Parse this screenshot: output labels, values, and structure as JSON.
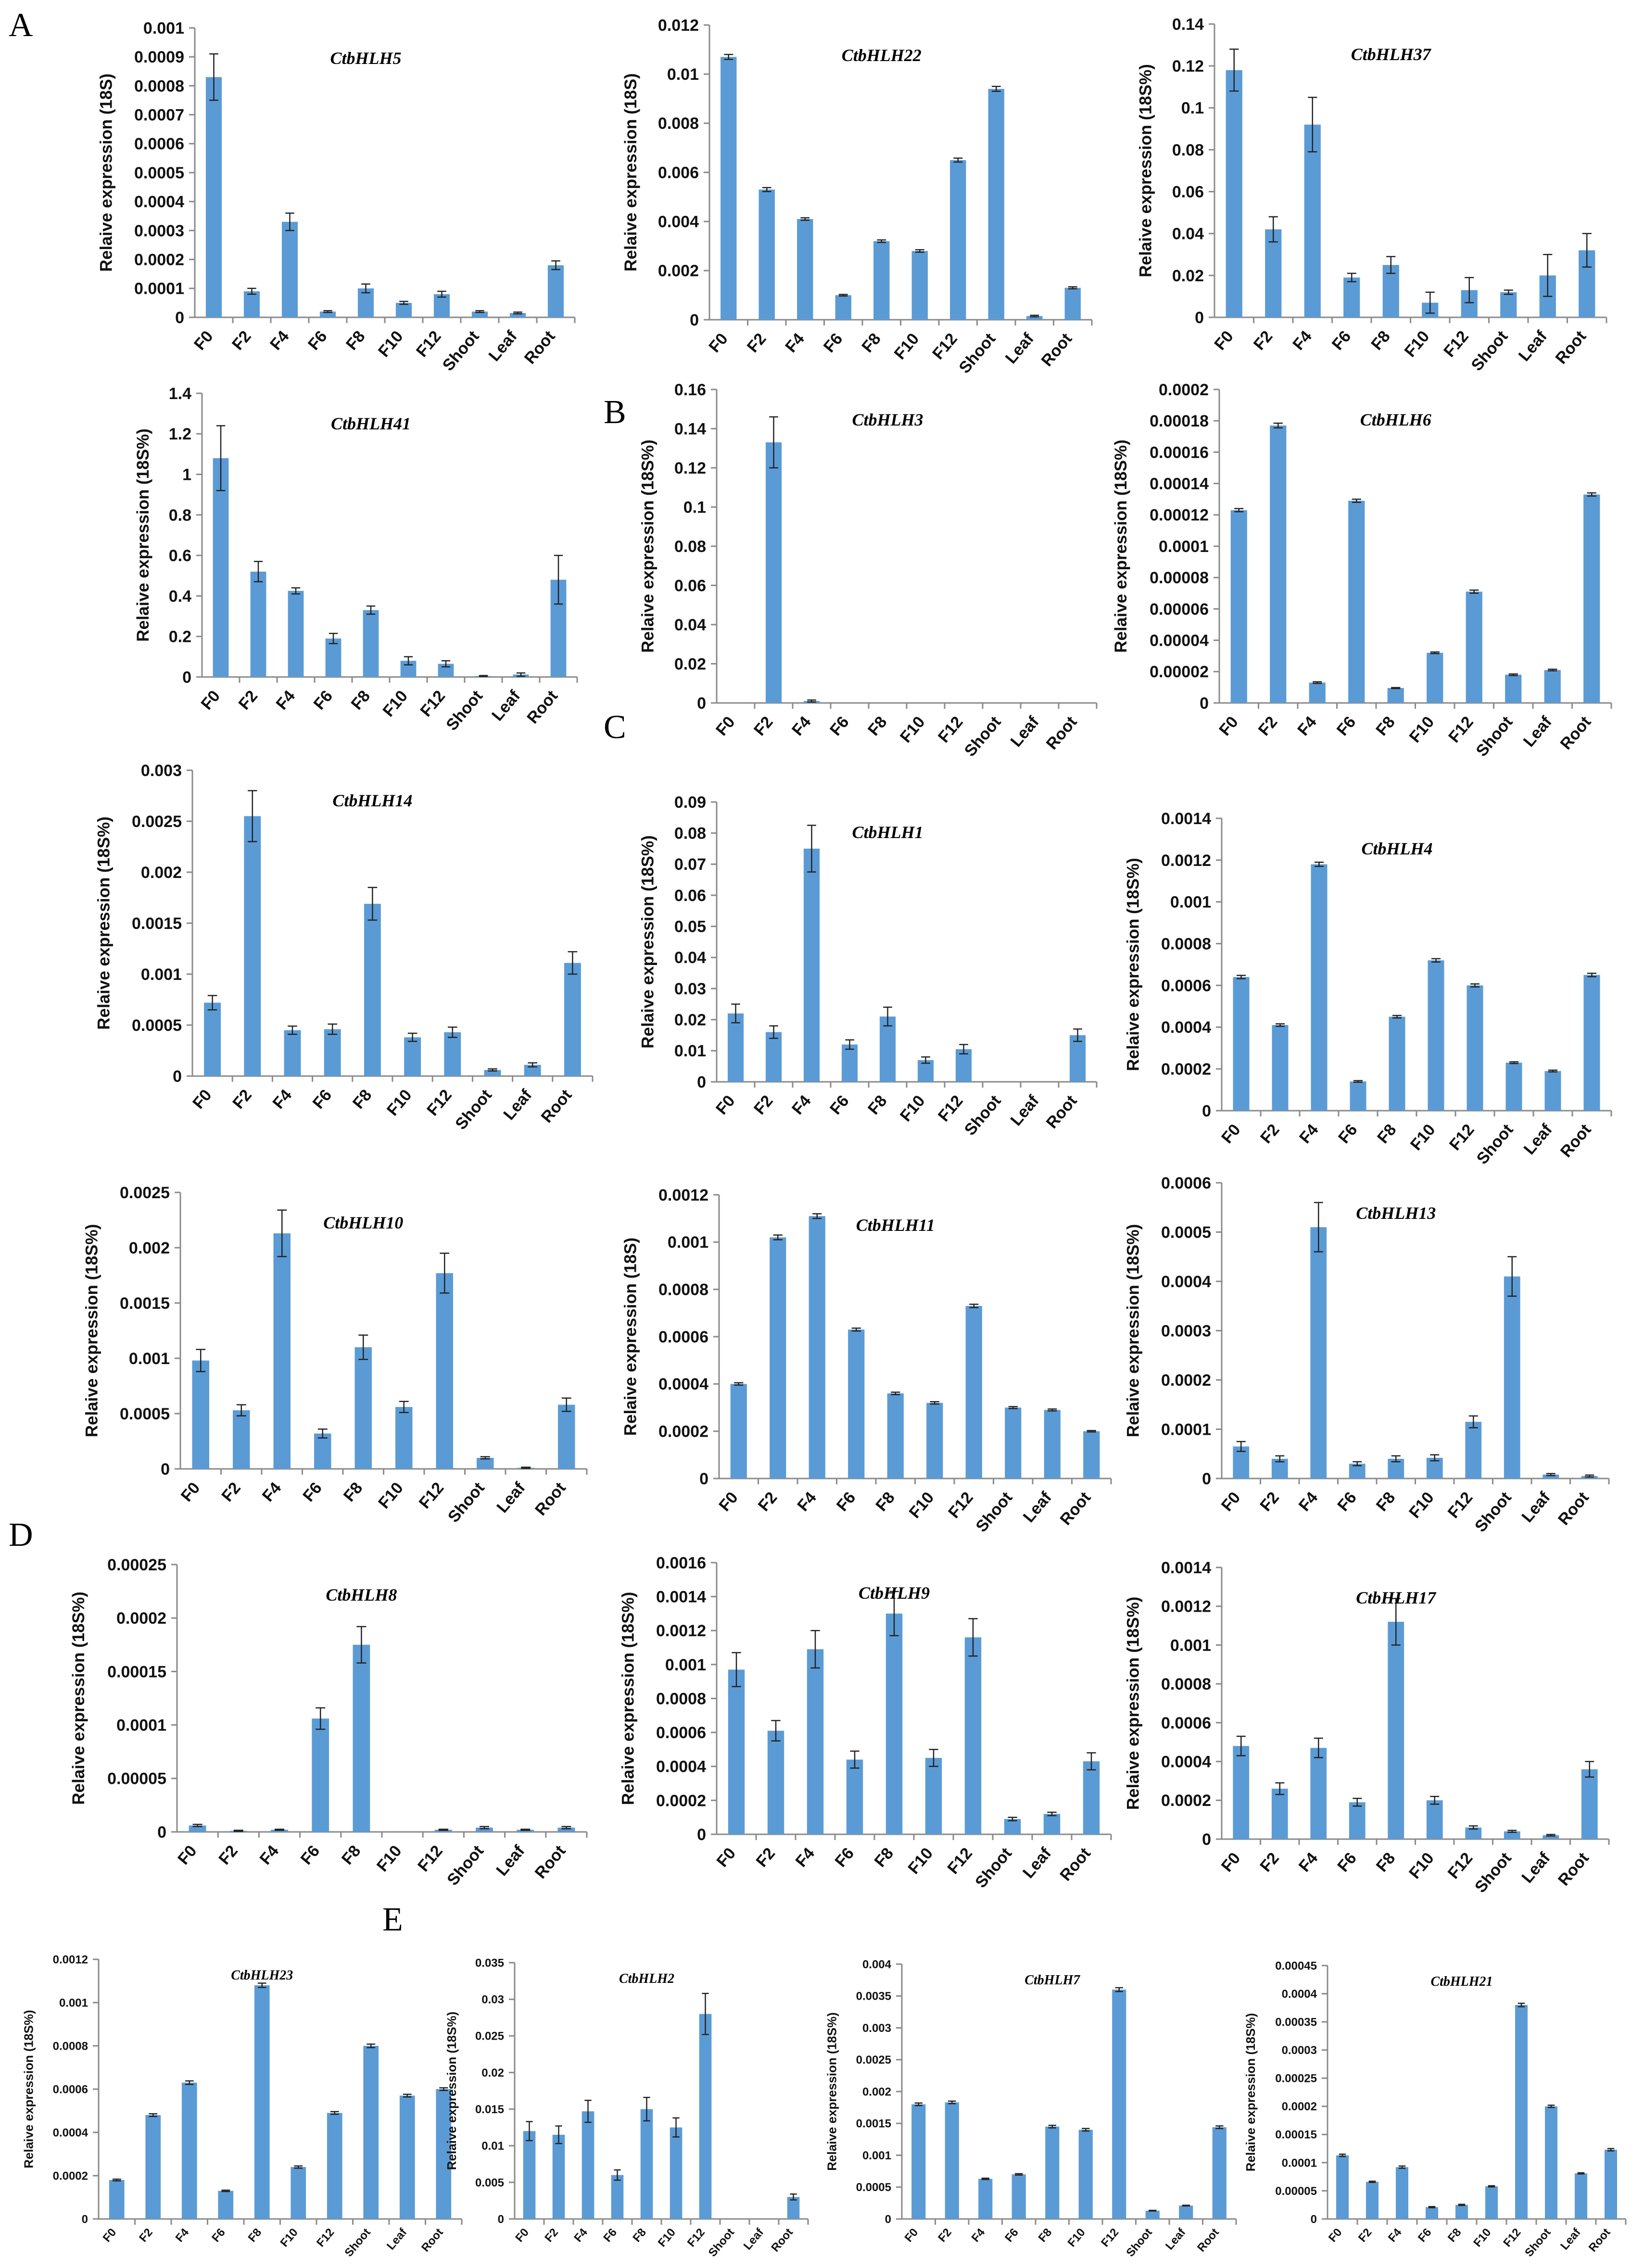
{
  "panel_labels": [
    "A",
    "B",
    "C",
    "D",
    "E"
  ],
  "chart_data": [
    {
      "type": "bar",
      "title": "CtbHLH5",
      "ylabel": "Relaive expression (18S)",
      "ylim": [
        0,
        0.001
      ],
      "ytick_labels": [
        "0",
        "0.0001",
        "0.0002",
        "0.0003",
        "0.0004",
        "0.0005",
        "0.0006",
        "0.0007",
        "0.0008",
        "0.0009",
        "0.001"
      ],
      "categories": [
        "F0",
        "F2",
        "F4",
        "F6",
        "F8",
        "F10",
        "F12",
        "Shoot",
        "Leaf",
        "Root"
      ],
      "values": [
        0.00083,
        9e-05,
        0.00033,
        2e-05,
        0.0001,
        5e-05,
        8e-05,
        2e-05,
        1.5e-05,
        0.00018
      ],
      "errors": [
        8e-05,
        1e-05,
        3e-05,
        3e-06,
        1.5e-05,
        5e-06,
        1e-05,
        3e-06,
        3e-06,
        1.5e-05
      ]
    },
    {
      "type": "bar",
      "title": "CtbHLH22",
      "ylabel": "Relaive expression (18S)",
      "ylim": [
        0,
        0.012
      ],
      "ytick_labels": [
        "0",
        "0.002",
        "0.004",
        "0.006",
        "0.008",
        "0.01",
        "0.012"
      ],
      "categories": [
        "F0",
        "F2",
        "F4",
        "F6",
        "F8",
        "F10",
        "F12",
        "Shoot",
        "Leaf",
        "Root"
      ],
      "values": [
        0.0107,
        0.0053,
        0.0041,
        0.001,
        0.0032,
        0.0028,
        0.0065,
        0.0094,
        0.00015,
        0.0013
      ],
      "errors": [
        0.0001,
        8e-05,
        5e-05,
        3e-05,
        5e-05,
        5e-05,
        8e-05,
        0.0001,
        3e-05,
        4e-05
      ]
    },
    {
      "type": "bar",
      "title": "CtbHLH37",
      "ylabel": "Relaive expression (18S%)",
      "ylim": [
        0,
        0.14
      ],
      "ytick_labels": [
        "0",
        "0.02",
        "0.04",
        "0.06",
        "0.08",
        "0.1",
        "0.12",
        "0.14"
      ],
      "categories": [
        "F0",
        "F2",
        "F4",
        "F6",
        "F8",
        "F10",
        "F12",
        "Shoot",
        "Leaf",
        "Root"
      ],
      "values": [
        0.118,
        0.042,
        0.092,
        0.019,
        0.025,
        0.007,
        0.013,
        0.012,
        0.02,
        0.032
      ],
      "errors": [
        0.01,
        0.006,
        0.013,
        0.002,
        0.004,
        0.005,
        0.006,
        0.001,
        0.01,
        0.008
      ]
    },
    {
      "type": "bar",
      "title": "CtbHLH41",
      "ylabel": "Relaive expression (18S%)",
      "ylim": [
        0,
        1.4
      ],
      "ytick_labels": [
        "0",
        "0.2",
        "0.4",
        "0.6",
        "0.8",
        "1",
        "1.2",
        "1.4"
      ],
      "categories": [
        "F0",
        "F2",
        "F4",
        "F6",
        "F8",
        "F10",
        "F12",
        "Shoot",
        "Leaf",
        "Root"
      ],
      "values": [
        1.08,
        0.52,
        0.425,
        0.19,
        0.33,
        0.08,
        0.065,
        0.005,
        0.012,
        0.48
      ],
      "errors": [
        0.16,
        0.05,
        0.015,
        0.025,
        0.02,
        0.02,
        0.015,
        0.002,
        0.008,
        0.12
      ]
    },
    {
      "type": "bar",
      "title": "CtbHLH3",
      "ylabel": "Relaive expression (18S%)",
      "ylim": [
        0,
        0.16
      ],
      "ytick_labels": [
        "0",
        "0.02",
        "0.04",
        "0.06",
        "0.08",
        "0.1",
        "0.12",
        "0.14",
        "0.16"
      ],
      "categories": [
        "F0",
        "F2",
        "F4",
        "F6",
        "F8",
        "F10",
        "F12",
        "Shoot",
        "Leaf",
        "Root"
      ],
      "values": [
        0,
        0.133,
        0.001,
        0,
        0,
        0,
        0,
        0,
        0,
        0
      ],
      "errors": [
        0,
        0.013,
        0.0005,
        0,
        0,
        0,
        0,
        0,
        0,
        0
      ]
    },
    {
      "type": "bar",
      "title": "CtbHLH6",
      "ylabel": "Relaive expression (18S%)",
      "ylim": [
        0,
        0.0002
      ],
      "ytick_labels": [
        "0",
        "0.00002",
        "0.00004",
        "0.00006",
        "0.00008",
        "0.0001",
        "0.00012",
        "0.00014",
        "0.00016",
        "0.00018",
        "0.0002"
      ],
      "categories": [
        "F0",
        "F2",
        "F4",
        "F6",
        "F8",
        "F10",
        "F12",
        "Shoot",
        "Leaf",
        "Root"
      ],
      "values": [
        0.000123,
        0.000177,
        1.3e-05,
        0.000129,
        9.5e-06,
        3.2e-05,
        7.1e-05,
        1.8e-05,
        2.1e-05,
        0.000133
      ],
      "errors": [
        1e-06,
        1.5e-06,
        5e-07,
        1e-06,
        3e-07,
        5e-07,
        1e-06,
        5e-07,
        5e-07,
        1e-06
      ]
    },
    {
      "type": "bar",
      "title": "CtbHLH14",
      "ylabel": "Relaive expression (18S%)",
      "ylim": [
        0,
        0.003
      ],
      "ytick_labels": [
        "0",
        "0.0005",
        "0.001",
        "0.0015",
        "0.002",
        "0.0025",
        "0.003"
      ],
      "categories": [
        "F0",
        "F2",
        "F4",
        "F6",
        "F8",
        "F10",
        "F12",
        "Shoot",
        "Leaf",
        "Root"
      ],
      "values": [
        0.00072,
        0.00255,
        0.00045,
        0.00046,
        0.00169,
        0.00038,
        0.00043,
        6e-05,
        0.00011,
        0.00111
      ],
      "errors": [
        7e-05,
        0.00025,
        4e-05,
        5e-05,
        0.00016,
        4e-05,
        5e-05,
        1e-05,
        2e-05,
        0.00011
      ]
    },
    {
      "type": "bar",
      "title": "CtbHLH1",
      "ylabel": "Relaive expression (18S%)",
      "ylim": [
        0,
        0.09
      ],
      "ytick_labels": [
        "0",
        "0.01",
        "0.02",
        "0.03",
        "0.04",
        "0.05",
        "0.06",
        "0.07",
        "0.08",
        "0.09"
      ],
      "categories": [
        "F0",
        "F2",
        "F4",
        "F6",
        "F8",
        "F10",
        "F12",
        "Shoot",
        "Leaf",
        "Root"
      ],
      "values": [
        0.022,
        0.016,
        0.075,
        0.012,
        0.021,
        0.007,
        0.0105,
        0,
        0,
        0.015
      ],
      "errors": [
        0.003,
        0.002,
        0.0075,
        0.0015,
        0.003,
        0.001,
        0.0015,
        0,
        0,
        0.002
      ]
    },
    {
      "type": "bar",
      "title": "CtbHLH4",
      "ylabel": "Relaive expression (18S%)",
      "ylim": [
        0,
        0.0014
      ],
      "ytick_labels": [
        "0",
        "0.0002",
        "0.0004",
        "0.0006",
        "0.0008",
        "0.001",
        "0.0012",
        "0.0014"
      ],
      "categories": [
        "F0",
        "F2",
        "F4",
        "F6",
        "F8",
        "F10",
        "F12",
        "Shoot",
        "Leaf",
        "Root"
      ],
      "values": [
        0.00064,
        0.00041,
        0.00118,
        0.00014,
        0.00045,
        0.00072,
        0.0006,
        0.00023,
        0.00019,
        0.00065
      ],
      "errors": [
        8e-06,
        6e-06,
        1e-05,
        4e-06,
        6e-06,
        8e-06,
        7e-06,
        4e-06,
        4e-06,
        8e-06
      ]
    },
    {
      "type": "bar",
      "title": "CtbHLH10",
      "ylabel": "Relaive expression (18S%)",
      "ylim": [
        0,
        0.0025
      ],
      "ytick_labels": [
        "0",
        "0.0005",
        "0.001",
        "0.0015",
        "0.002",
        "0.0025"
      ],
      "categories": [
        "F0",
        "F2",
        "F4",
        "F6",
        "F8",
        "F10",
        "F12",
        "Shoot",
        "Leaf",
        "Root"
      ],
      "values": [
        0.00098,
        0.00053,
        0.00213,
        0.00032,
        0.0011,
        0.00056,
        0.00177,
        0.0001,
        1e-05,
        0.00058
      ],
      "errors": [
        0.0001,
        5e-05,
        0.00021,
        4e-05,
        0.00011,
        5e-05,
        0.00018,
        1e-05,
        5e-06,
        6e-05
      ]
    },
    {
      "type": "bar",
      "title": "CtbHLH11",
      "ylabel": "Relaive expression (18S)",
      "ylim": [
        0,
        0.0012
      ],
      "ytick_labels": [
        "0",
        "0.0002",
        "0.0004",
        "0.0006",
        "0.0008",
        "0.001",
        "0.0012"
      ],
      "categories": [
        "F0",
        "F2",
        "F4",
        "F6",
        "F8",
        "F10",
        "F12",
        "Shoot",
        "Leaf",
        "Root"
      ],
      "values": [
        0.0004,
        0.00102,
        0.00111,
        0.00063,
        0.00036,
        0.00032,
        0.00073,
        0.0003,
        0.00029,
        0.0002
      ],
      "errors": [
        5e-06,
        1e-05,
        1e-05,
        6e-06,
        5e-06,
        5e-06,
        7e-06,
        4e-06,
        4e-06,
        3e-06
      ]
    },
    {
      "type": "bar",
      "title": "CtbHLH13",
      "ylabel": "Relaive expression (18S%)",
      "ylim": [
        0,
        0.0006
      ],
      "ytick_labels": [
        "0",
        "0.0001",
        "0.0002",
        "0.0003",
        "0.0004",
        "0.0005",
        "0.0006"
      ],
      "categories": [
        "F0",
        "F2",
        "F4",
        "F6",
        "F8",
        "F10",
        "F12",
        "Shoot",
        "Leaf",
        "Root"
      ],
      "values": [
        6.5e-05,
        4e-05,
        0.00051,
        3e-05,
        4e-05,
        4.2e-05,
        0.000115,
        0.00041,
        8e-06,
        5e-06
      ],
      "errors": [
        1e-05,
        6e-06,
        5e-05,
        4e-06,
        6e-06,
        6e-06,
        1.2e-05,
        4e-05,
        2e-06,
        2e-06
      ]
    },
    {
      "type": "bar",
      "title": "CtbHLH8",
      "ylabel": "Relaive expression (18S%)",
      "ylim": [
        0,
        0.00025
      ],
      "ytick_labels": [
        "0",
        "0.00005",
        "0.0001",
        "0.00015",
        "0.0002",
        "0.00025"
      ],
      "categories": [
        "F0",
        "F2",
        "F4",
        "F6",
        "F8",
        "F10",
        "F12",
        "Shoot",
        "Leaf",
        "Root"
      ],
      "values": [
        6e-06,
        1e-06,
        2e-06,
        0.000106,
        0.000175,
        0,
        2e-06,
        4e-06,
        2e-06,
        4e-06
      ],
      "errors": [
        1e-06,
        5e-07,
        5e-07,
        1e-05,
        1.7e-05,
        0,
        5e-07,
        1e-06,
        5e-07,
        1e-06
      ]
    },
    {
      "type": "bar",
      "title": "CtbHLH9",
      "ylabel": "Relaive expression (18S%)",
      "ylim": [
        0,
        0.0016
      ],
      "ytick_labels": [
        "0",
        "0.0002",
        "0.0004",
        "0.0006",
        "0.0008",
        "0.001",
        "0.0012",
        "0.0014",
        "0.0016"
      ],
      "categories": [
        "F0",
        "F2",
        "F4",
        "F6",
        "F8",
        "F10",
        "F12",
        "Shoot",
        "Leaf",
        "Root"
      ],
      "values": [
        0.00097,
        0.00061,
        0.00109,
        0.00044,
        0.0013,
        0.00045,
        0.00116,
        9e-05,
        0.00012,
        0.00043
      ],
      "errors": [
        0.0001,
        6e-05,
        0.00011,
        5e-05,
        0.00013,
        5e-05,
        0.00011,
        1e-05,
        1e-05,
        5e-05
      ]
    },
    {
      "type": "bar",
      "title": "CtbHLH17",
      "ylabel": "Relaive expression (18S%)",
      "ylim": [
        0,
        0.0014
      ],
      "ytick_labels": [
        "0",
        "0.0002",
        "0.0004",
        "0.0006",
        "0.0008",
        "0.001",
        "0.0012",
        "0.0014"
      ],
      "categories": [
        "F0",
        "F2",
        "F4",
        "F6",
        "F8",
        "F10",
        "F12",
        "Shoot",
        "Leaf",
        "Root"
      ],
      "values": [
        0.00048,
        0.00026,
        0.00047,
        0.00019,
        0.00112,
        0.0002,
        6e-05,
        4e-05,
        2e-05,
        0.00036
      ],
      "errors": [
        5e-05,
        3e-05,
        5e-05,
        2e-05,
        0.00012,
        2e-05,
        8e-06,
        5e-06,
        4e-06,
        4e-05
      ]
    },
    {
      "type": "bar",
      "title": "CtbHLH23",
      "ylabel": "Relaive expression (18S%)",
      "ylim": [
        0,
        0.0012
      ],
      "ytick_labels": [
        "0",
        "0.0002",
        "0.0004",
        "0.0006",
        "0.0008",
        "0.001",
        "0.0012"
      ],
      "categories": [
        "F0",
        "F2",
        "F4",
        "F6",
        "F8",
        "F10",
        "F12",
        "Shoot",
        "Leaf",
        "Root"
      ],
      "values": [
        0.00018,
        0.00048,
        0.00063,
        0.00013,
        0.00108,
        0.00024,
        0.00049,
        0.0008,
        0.00057,
        0.0006
      ],
      "errors": [
        4e-06,
        6e-06,
        8e-06,
        3e-06,
        1e-05,
        5e-06,
        6e-06,
        8e-06,
        6e-06,
        6e-06
      ]
    },
    {
      "type": "bar",
      "title": "CtbHLH2",
      "ylabel": "Relaive expression (18S%)",
      "ylim": [
        0,
        0.035
      ],
      "ytick_labels": [
        "0",
        "0.005",
        "0.01",
        "0.015",
        "0.02",
        "0.025",
        "0.03",
        "0.035"
      ],
      "categories": [
        "F0",
        "F2",
        "F4",
        "F6",
        "F8",
        "F10",
        "F12",
        "Shoot",
        "Leaf",
        "Root"
      ],
      "values": [
        0.012,
        0.0115,
        0.0147,
        0.006,
        0.015,
        0.0125,
        0.028,
        0,
        0,
        0.003
      ],
      "errors": [
        0.0013,
        0.0012,
        0.0015,
        0.0007,
        0.0016,
        0.0013,
        0.0028,
        0,
        0,
        0.0004
      ]
    },
    {
      "type": "bar",
      "title": "CtbHLH7",
      "ylabel": "Relaive expression (18S%)",
      "ylim": [
        0,
        0.004
      ],
      "ytick_labels": [
        "0",
        "0.0005",
        "0.001",
        "0.0015",
        "0.002",
        "0.0025",
        "0.003",
        "0.0035",
        "0.004"
      ],
      "categories": [
        "F0",
        "F2",
        "F4",
        "F6",
        "F8",
        "F10",
        "F12",
        "Shoot",
        "Leaf",
        "Root"
      ],
      "values": [
        0.0018,
        0.00183,
        0.00063,
        0.0007,
        0.00145,
        0.0014,
        0.0036,
        0.00013,
        0.00021,
        0.00144
      ],
      "errors": [
        2e-05,
        2e-05,
        1e-05,
        1e-05,
        2e-05,
        2e-05,
        3e-05,
        5e-06,
        5e-06,
        2e-05
      ]
    },
    {
      "type": "bar",
      "title": "CtbHLH21",
      "ylabel": "Relaive expression (18S%)",
      "ylim": [
        0,
        0.00045
      ],
      "ytick_labels": [
        "0",
        "0.00005",
        "0.0001",
        "0.00015",
        "0.0002",
        "0.00025",
        "0.0003",
        "0.00035",
        "0.0004",
        "0.00045"
      ],
      "categories": [
        "F0",
        "F2",
        "F4",
        "F6",
        "F8",
        "F10",
        "F12",
        "Shoot",
        "Leaf",
        "Root"
      ],
      "values": [
        0.000113,
        6.6e-05,
        9.2e-05,
        2.1e-05,
        2.5e-05,
        5.8e-05,
        0.00038,
        0.0002,
        8.1e-05,
        0.000123
      ],
      "errors": [
        2e-06,
        1e-06,
        2e-06,
        1e-06,
        1e-06,
        1e-06,
        3e-06,
        2e-06,
        1e-06,
        2e-06
      ]
    }
  ]
}
